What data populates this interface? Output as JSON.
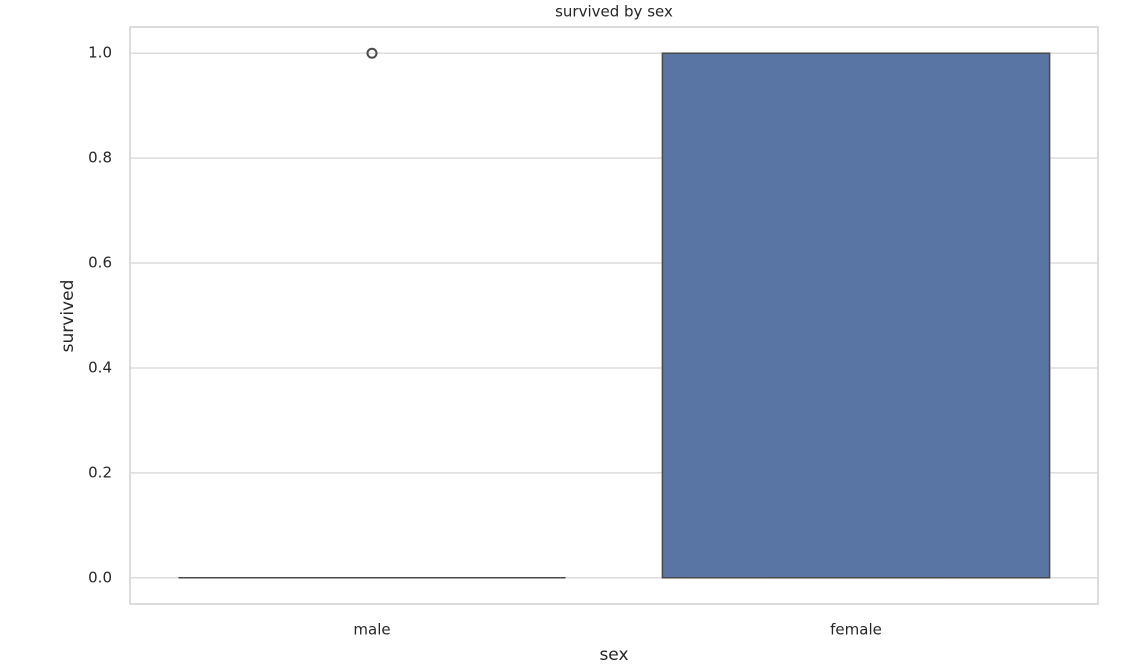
{
  "chart_data": {
    "type": "box",
    "title": "survived by sex",
    "xlabel": "sex",
    "ylabel": "survived",
    "categories": [
      "male",
      "female"
    ],
    "boxes": [
      {
        "min": 0,
        "q1": 0,
        "median": 0,
        "q3": 0,
        "max": 0,
        "outliers": [
          1
        ]
      },
      {
        "min": 0,
        "q1": 0,
        "median": 1,
        "q3": 1,
        "max": 1,
        "outliers": []
      }
    ],
    "color": "#5975a4",
    "line_color": "#4a4a4a",
    "ylim": [
      -0.05,
      1.05
    ],
    "yticks": [
      {
        "value": 0,
        "label": "0.0"
      },
      0.2,
      0.4,
      0.6,
      0.8,
      {
        "value": 1,
        "label": "1.0"
      }
    ],
    "grid": true
  }
}
